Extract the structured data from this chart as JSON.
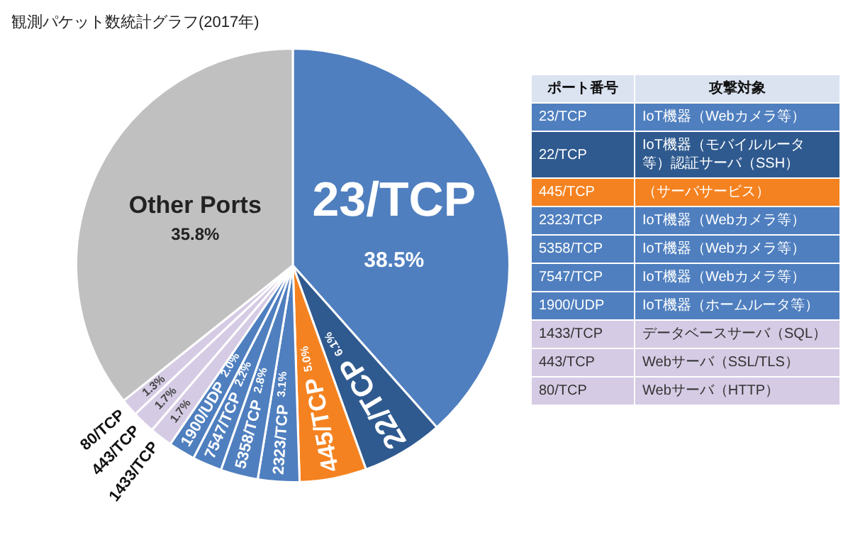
{
  "chart_data": [
    {
      "type": "pie",
      "title": "観測パケット数統計グラフ(2017年)",
      "categories": [
        "23/TCP",
        "22/TCP",
        "445/TCP",
        "2323/TCP",
        "5358/TCP",
        "7547/TCP",
        "1900/UDP",
        "1433/TCP",
        "443/TCP",
        "80/TCP",
        "Other Ports"
      ],
      "values": [
        38.5,
        6.1,
        5.0,
        3.1,
        2.8,
        2.2,
        2.0,
        1.7,
        1.7,
        1.3,
        35.8
      ],
      "value_labels": [
        "38.5%",
        "6.1%",
        "5.0%",
        "3.1%",
        "2.8%",
        "2.2%",
        "2.0%",
        "1.7%",
        "1.7%",
        "1.3%",
        "35.8%"
      ],
      "colors": [
        "#4f7fbf",
        "#2f5a8f",
        "#f58220",
        "#4f7fbf",
        "#4f7fbf",
        "#4f7fbf",
        "#4f7fbf",
        "#d5cbe4",
        "#d5cbe4",
        "#d5cbe4",
        "#c0c0c0"
      ],
      "legend": false
    },
    {
      "type": "other",
      "annotations": [
        "ポート番号",
        "攻撃対象",
        "23/TCP",
        "IoT機器（Webカメラ等）",
        "22/TCP",
        "IoT機器（モバイルルータ等）認証サーバ（SSH）",
        "445/TCP",
        "（サーバサービス）",
        "2323/TCP",
        "IoT機器（Webカメラ等）",
        "5358/TCP",
        "IoT機器（Webカメラ等）",
        "7547/TCP",
        "IoT機器（Webカメラ等）",
        "1900/UDP",
        "IoT機器（ホームルータ等）",
        "1433/TCP",
        "データベースサーバ（SQL）",
        "443/TCP",
        "Webサーバ（SSL/TLS）",
        "80/TCP",
        "Webサーバ（HTTP）"
      ],
      "colors": [
        "#dbe3f1",
        "#4f7fbf",
        "#2f5a8f",
        "#f58220",
        "#4f7fbf",
        "#4f7fbf",
        "#4f7fbf",
        "#4f7fbf",
        "#d5cbe4",
        "#d5cbe4",
        "#d5cbe4"
      ]
    }
  ]
}
